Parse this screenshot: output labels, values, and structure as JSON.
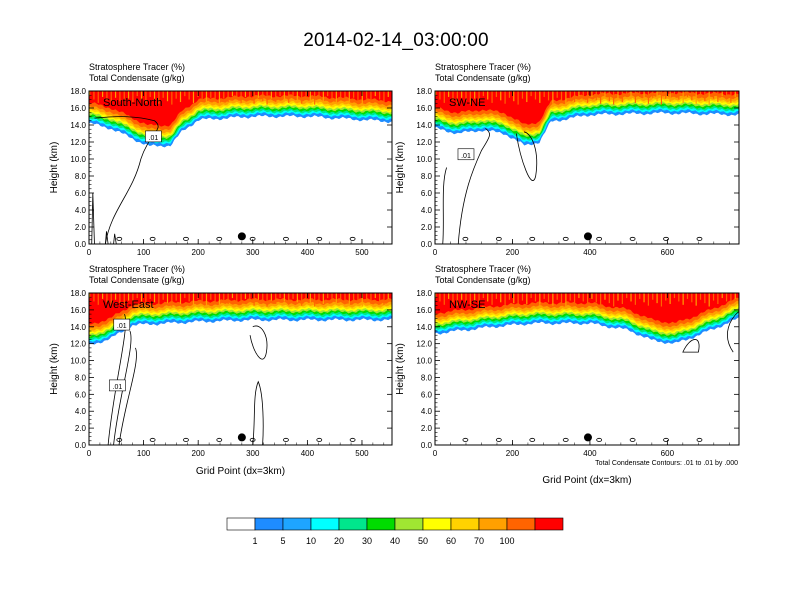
{
  "title": "2014-02-14_03:00:00",
  "panel_header": {
    "line1": "Stratosphere Tracer   (%)",
    "line2": "Total Condensate   (g/kg)"
  },
  "contour_note": "Total Condensate Contours: .01 to .01 by .000",
  "colorbar": {
    "labels": [
      "1",
      "5",
      "10",
      "20",
      "30",
      "40",
      "50",
      "60",
      "70",
      "100"
    ],
    "colors": [
      "#ffffff",
      "#1e8cff",
      "#1ea5ff",
      "#00ffff",
      "#00e68c",
      "#00dc00",
      "#a0e632",
      "#ffff00",
      "#ffd200",
      "#ffa000",
      "#ff6400",
      "#ff0000"
    ]
  },
  "chart_data": [
    {
      "type": "heatmap",
      "name": "South-North",
      "label": "South-North",
      "ylabel": "Height (km)",
      "xlabel": "",
      "x_ticks": [
        0,
        100,
        200,
        300,
        400,
        500
      ],
      "xlim": [
        0,
        555
      ],
      "y_ticks": [
        "0.0",
        "2.0",
        "4.0",
        "6.0",
        "8.0",
        "10.0",
        "12.0",
        "14.0",
        "16.0",
        "18.0"
      ],
      "ylim": [
        0,
        18
      ],
      "tropopause_base_km": [
        [
          0,
          14.2
        ],
        [
          40,
          13.6
        ],
        [
          80,
          12.4
        ],
        [
          110,
          11.5
        ],
        [
          150,
          11.6
        ],
        [
          170,
          13.2
        ],
        [
          200,
          14.6
        ],
        [
          300,
          15.0
        ],
        [
          400,
          15.0
        ],
        [
          555,
          14.4
        ]
      ],
      "contour_labels": [
        ".01"
      ],
      "marker_x": 280
    },
    {
      "type": "heatmap",
      "name": "SW-NE",
      "label": "SW-NE",
      "ylabel": "Height (km)",
      "xlabel": "",
      "x_ticks": [
        0,
        200,
        400,
        600
      ],
      "xlim": [
        0,
        785
      ],
      "y_ticks": [
        "0.0",
        "2.0",
        "4.0",
        "6.0",
        "8.0",
        "10.0",
        "12.0",
        "14.0",
        "16.0",
        "18.0"
      ],
      "ylim": [
        0,
        18
      ],
      "tropopause_base_km": [
        [
          0,
          13.6
        ],
        [
          60,
          13.0
        ],
        [
          120,
          13.4
        ],
        [
          180,
          13.0
        ],
        [
          230,
          11.6
        ],
        [
          270,
          12.0
        ],
        [
          300,
          14.4
        ],
        [
          400,
          15.2
        ],
        [
          600,
          15.4
        ],
        [
          785,
          15.2
        ]
      ],
      "contour_labels": [
        ".01"
      ],
      "marker_x": 395
    },
    {
      "type": "heatmap",
      "name": "West-East",
      "label": "West-East",
      "ylabel": "Height (km)",
      "xlabel": "Grid Point (dx=3km)",
      "x_ticks": [
        0,
        100,
        200,
        300,
        400,
        500
      ],
      "xlim": [
        0,
        555
      ],
      "y_ticks": [
        "0.0",
        "2.0",
        "4.0",
        "6.0",
        "8.0",
        "10.0",
        "12.0",
        "14.0",
        "16.0",
        "18.0"
      ],
      "ylim": [
        0,
        18
      ],
      "tropopause_base_km": [
        [
          0,
          11.8
        ],
        [
          40,
          12.6
        ],
        [
          80,
          14.2
        ],
        [
          200,
          14.6
        ],
        [
          300,
          14.8
        ],
        [
          400,
          14.8
        ],
        [
          555,
          14.8
        ]
      ],
      "contour_labels": [
        ".01",
        ".01"
      ],
      "marker_x": 280
    },
    {
      "type": "heatmap",
      "name": "NW-SE",
      "label": "NW-SE",
      "ylabel": "Height (km)",
      "xlabel": "Grid Point (dx=3km)",
      "x_ticks": [
        0,
        200,
        400,
        600
      ],
      "xlim": [
        0,
        785
      ],
      "y_ticks": [
        "0.0",
        "2.0",
        "4.0",
        "6.0",
        "8.0",
        "10.0",
        "12.0",
        "14.0",
        "16.0",
        "18.0"
      ],
      "ylim": [
        0,
        18
      ],
      "tropopause_base_km": [
        [
          0,
          13.2
        ],
        [
          150,
          14.0
        ],
        [
          250,
          14.4
        ],
        [
          400,
          14.4
        ],
        [
          500,
          13.6
        ],
        [
          560,
          12.4
        ],
        [
          620,
          12.0
        ],
        [
          680,
          13.0
        ],
        [
          785,
          15.0
        ]
      ],
      "contour_labels": [],
      "marker_x": 395
    }
  ]
}
